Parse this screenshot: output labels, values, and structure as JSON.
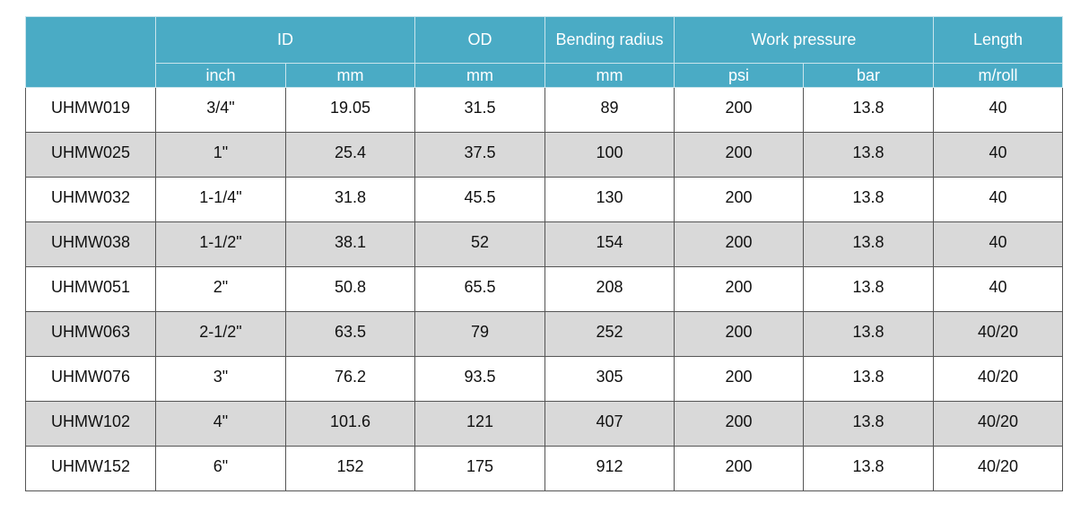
{
  "table": {
    "header_top": [
      "ID",
      "OD",
      "Bending radius",
      "Work pressure",
      "Length"
    ],
    "header_units": [
      "inch",
      "mm",
      "mm",
      "mm",
      "psi",
      "bar",
      "m/roll"
    ],
    "rows": [
      [
        "UHMW019",
        "3/4\"",
        "19.05",
        "31.5",
        "89",
        "200",
        "13.8",
        "40"
      ],
      [
        "UHMW025",
        "1\"",
        "25.4",
        "37.5",
        "100",
        "200",
        "13.8",
        "40"
      ],
      [
        "UHMW032",
        "1-1/4\"",
        "31.8",
        "45.5",
        "130",
        "200",
        "13.8",
        "40"
      ],
      [
        "UHMW038",
        "1-1/2\"",
        "38.1",
        "52",
        "154",
        "200",
        "13.8",
        "40"
      ],
      [
        "UHMW051",
        "2\"",
        "50.8",
        "65.5",
        "208",
        "200",
        "13.8",
        "40"
      ],
      [
        "UHMW063",
        "2-1/2\"",
        "63.5",
        "79",
        "252",
        "200",
        "13.8",
        "40/20"
      ],
      [
        "UHMW076",
        "3\"",
        "76.2",
        "93.5",
        "305",
        "200",
        "13.8",
        "40/20"
      ],
      [
        "UHMW102",
        "4\"",
        "101.6",
        "121",
        "407",
        "200",
        "13.8",
        "40/20"
      ],
      [
        "UHMW152",
        "6\"",
        "152",
        "175",
        "912",
        "200",
        "13.8",
        "40/20"
      ]
    ]
  }
}
